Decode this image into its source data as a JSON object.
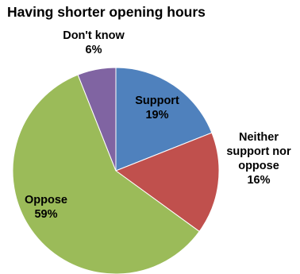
{
  "chart_data": {
    "type": "pie",
    "title": "Having shorter opening hours",
    "categories": [
      "Support",
      "Neither support nor oppose",
      "Oppose",
      "Don't know"
    ],
    "values": [
      19,
      16,
      59,
      6
    ],
    "colors": [
      "#4f81bd",
      "#c0504d",
      "#9bbb59",
      "#8064a2"
    ],
    "start_angle_deg": 0,
    "direction": "clockwise",
    "legend": "none",
    "labels": [
      {
        "lines": [
          "Support",
          "19%"
        ]
      },
      {
        "lines": [
          "Neither",
          "support nor",
          "oppose",
          "16%"
        ]
      },
      {
        "lines": [
          "Oppose",
          "59%"
        ]
      },
      {
        "lines": [
          "Don't know",
          "6%"
        ]
      }
    ]
  }
}
